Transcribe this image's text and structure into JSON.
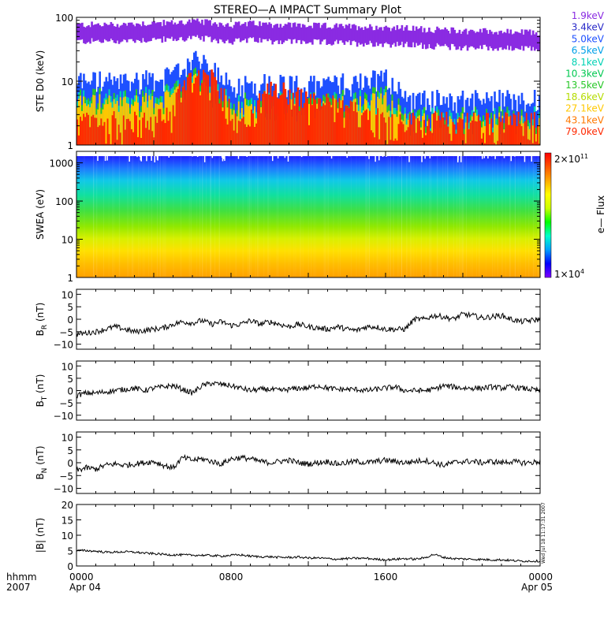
{
  "title": "STEREO—A IMPACT Summary Plot",
  "stamp": "Wed Jul 18 11:17:31 2007",
  "colors": {
    "ste_channels": [
      "#8a2be2",
      "#2828c8",
      "#1e50ff",
      "#00a0e8",
      "#00d2b4",
      "#00c850",
      "#28c828",
      "#b4dc00",
      "#ffc800",
      "#ff7800",
      "#ff2800"
    ]
  },
  "chart_data": [
    {
      "type": "line",
      "panel": "ste",
      "ylabel": "STE D0 (keV)",
      "yscale": "log",
      "ylim": [
        1,
        100
      ],
      "yticks": [
        1,
        10,
        100
      ],
      "ytick_labels": [
        "1",
        "10",
        "100"
      ],
      "legend": [
        "1.9keV",
        "3.4keV",
        "5.0keV",
        "6.5keV",
        "8.1keV",
        "10.3keV",
        "13.5keV",
        "18.6keV",
        "27.1keV",
        "43.1keV",
        "79.0keV"
      ],
      "legend_position": "right",
      "x_hours": [
        0,
        1,
        2,
        3,
        4,
        5,
        6,
        7,
        8,
        9,
        10,
        11,
        12,
        13,
        14,
        15,
        16,
        17,
        18,
        19,
        20,
        21,
        22,
        23,
        24
      ],
      "series_levels": {
        "upper_envelope": [
          75,
          75,
          75,
          78,
          80,
          80,
          85,
          80,
          75,
          78,
          76,
          75,
          72,
          72,
          70,
          70,
          68,
          66,
          64,
          62,
          60,
          60,
          58,
          57,
          56
        ],
        "blue_envelope": [
          10,
          10,
          9,
          10,
          11,
          11,
          22,
          14,
          8,
          9,
          9,
          9,
          8,
          9,
          9,
          10,
          11,
          5,
          5,
          5,
          5,
          5,
          5,
          5,
          5
        ],
        "red_envelope": [
          2,
          2,
          2,
          2,
          2,
          3,
          12,
          9,
          3,
          2,
          6,
          6,
          4,
          4,
          3,
          3,
          2,
          2,
          2,
          2,
          2,
          2,
          2,
          2,
          2
        ]
      }
    },
    {
      "type": "heatmap",
      "panel": "swea",
      "ylabel": "SWEA (eV)",
      "yscale": "log",
      "ylim": [
        1,
        2000
      ],
      "yticks": [
        1,
        10,
        100,
        1000
      ],
      "ytick_labels": [
        "1",
        "10",
        "100",
        "1000"
      ],
      "colorbar_label": "e— Flux",
      "colorbar_min": "1×10",
      "colorbar_min_exp": "4",
      "colorbar_max": "2×10",
      "colorbar_max_exp": "11",
      "colorscale": [
        "#7f00ff",
        "#0000ff",
        "#00a0ff",
        "#00ffcc",
        "#00ff00",
        "#ccff00",
        "#ffff00",
        "#ffaa00",
        "#ff5500",
        "#ff0000"
      ]
    },
    {
      "type": "line",
      "panel": "br",
      "ylabel_main": "B",
      "ylabel_sub": "R",
      "ylabel_unit": " (nT)",
      "ylim": [
        -12,
        12
      ],
      "yticks": [
        -10,
        -5,
        0,
        5,
        10
      ],
      "ytick_labels": [
        "−10",
        "−5",
        "0",
        "5",
        "10"
      ],
      "x_hours": [
        0,
        0.5,
        1,
        1.5,
        2,
        2.5,
        3,
        3.5,
        4,
        4.5,
        5,
        5.5,
        6,
        6.5,
        7,
        7.5,
        8,
        8.5,
        9,
        9.5,
        10,
        10.5,
        11,
        11.5,
        12,
        12.5,
        13,
        13.5,
        14,
        14.5,
        15,
        15.5,
        16,
        16.5,
        17,
        17.5,
        18,
        18.5,
        19,
        19.5,
        20,
        20.5,
        21,
        21.5,
        22,
        22.5,
        23,
        23.5,
        24
      ],
      "values": [
        -6,
        -5.5,
        -5,
        -4,
        -3,
        -4,
        -5,
        -4.5,
        -4,
        -3.5,
        -2,
        -1,
        -1.5,
        -0.5,
        -2,
        -1,
        -2.5,
        -2,
        -0.5,
        -2,
        -1,
        -2,
        -3,
        -2,
        -3,
        -3.5,
        -4,
        -3,
        -4,
        -4.5,
        -3,
        -3,
        -4,
        -4,
        -4,
        0,
        0,
        1.5,
        1,
        0,
        2,
        1.5,
        0.5,
        1,
        1.5,
        0,
        -1,
        -0.5,
        0
      ]
    },
    {
      "type": "line",
      "panel": "bt",
      "ylabel_main": "B",
      "ylabel_sub": "T",
      "ylabel_unit": " (nT)",
      "ylim": [
        -12,
        12
      ],
      "yticks": [
        -10,
        -5,
        0,
        5,
        10
      ],
      "ytick_labels": [
        "−10",
        "−5",
        "0",
        "5",
        "10"
      ],
      "x_hours": [
        0,
        0.5,
        1,
        1.5,
        2,
        2.5,
        3,
        3.5,
        4,
        4.5,
        5,
        5.5,
        6,
        6.5,
        7,
        7.5,
        8,
        8.5,
        9,
        9.5,
        10,
        10.5,
        11,
        11.5,
        12,
        12.5,
        13,
        13.5,
        14,
        14.5,
        15,
        15.5,
        16,
        16.5,
        17,
        17.5,
        18,
        18.5,
        19,
        19.5,
        20,
        20.5,
        21,
        21.5,
        22,
        22.5,
        23,
        23.5,
        24
      ],
      "values": [
        -2,
        -1,
        -1,
        -0.5,
        0,
        0.5,
        1,
        0,
        1,
        1.5,
        2,
        0.5,
        -1,
        2,
        3,
        2.5,
        2,
        1,
        0,
        0.5,
        0.5,
        0,
        0.5,
        1,
        1,
        2,
        1,
        0.5,
        0.5,
        0.5,
        0,
        0.5,
        1,
        1.5,
        0,
        0,
        0,
        0.5,
        2,
        1.5,
        1,
        1,
        1,
        1.5,
        1,
        1.5,
        1,
        0.5,
        0
      ]
    },
    {
      "type": "line",
      "panel": "bn",
      "ylabel_main": "B",
      "ylabel_sub": "N",
      "ylabel_unit": " (nT)",
      "ylim": [
        -12,
        12
      ],
      "yticks": [
        -10,
        -5,
        0,
        5,
        10
      ],
      "ytick_labels": [
        "−10",
        "−5",
        "0",
        "5",
        "10"
      ],
      "x_hours": [
        0,
        0.5,
        1,
        1.5,
        2,
        2.5,
        3,
        3.5,
        4,
        4.5,
        5,
        5.5,
        6,
        6.5,
        7,
        7.5,
        8,
        8.5,
        9,
        9.5,
        10,
        10.5,
        11,
        11.5,
        12,
        12.5,
        13,
        13.5,
        14,
        14.5,
        15,
        15.5,
        16,
        16.5,
        17,
        17.5,
        18,
        18.5,
        19,
        19.5,
        20,
        20.5,
        21,
        21.5,
        22,
        22.5,
        23,
        23.5,
        24
      ],
      "values": [
        -3,
        -2,
        -2.5,
        -1,
        -0.5,
        -1,
        -0.5,
        0,
        0.5,
        -1,
        -2,
        2,
        1,
        1.5,
        0.5,
        -0.5,
        1.5,
        2,
        1.5,
        0.5,
        0,
        0.5,
        1,
        0,
        -0.5,
        0,
        0.5,
        -0.5,
        0,
        0.5,
        0,
        0.5,
        1,
        0.5,
        0,
        0.5,
        1,
        0,
        -1,
        0,
        0.5,
        0.5,
        0,
        0.5,
        0,
        0.5,
        0,
        0,
        0.5
      ]
    },
    {
      "type": "line",
      "panel": "bmag",
      "ylabel": "|B| (nT)",
      "ylim": [
        0,
        20
      ],
      "yticks": [
        0,
        5,
        10,
        15,
        20
      ],
      "ytick_labels": [
        "0",
        "5",
        "10",
        "15",
        "20"
      ],
      "x_hours": [
        0,
        0.5,
        1,
        1.5,
        2,
        2.5,
        3,
        3.5,
        4,
        4.5,
        5,
        5.5,
        6,
        6.5,
        7,
        7.5,
        8,
        8.5,
        9,
        9.5,
        10,
        10.5,
        11,
        11.5,
        12,
        12.5,
        13,
        13.5,
        14,
        14.5,
        15,
        15.5,
        16,
        16.5,
        17,
        17.5,
        18,
        18.5,
        19,
        19.5,
        20,
        20.5,
        21,
        21.5,
        22,
        22.5,
        23,
        23.5,
        24
      ],
      "values": [
        5,
        5,
        4.8,
        4.5,
        4.5,
        4.6,
        4.5,
        4.2,
        4,
        3.8,
        3.6,
        3.6,
        3.5,
        3.5,
        3.4,
        3.2,
        3.5,
        3.6,
        3.2,
        3,
        3,
        2.8,
        2.8,
        2.9,
        2.6,
        2.6,
        2.4,
        2.2,
        2.4,
        2.5,
        2.5,
        2.2,
        2,
        2.2,
        2.4,
        2.2,
        2.6,
        3.8,
        2.8,
        2.4,
        2.3,
        2.2,
        2.1,
        2,
        2,
        1.8,
        1.6,
        1.6,
        1.6
      ]
    }
  ],
  "xaxis": {
    "label_line1": "hhmm",
    "label_line2": "2007",
    "ticks": [
      {
        "hour": 0,
        "label": "0000",
        "date": "Apr 04"
      },
      {
        "hour": 8,
        "label": "0800",
        "date": ""
      },
      {
        "hour": 16,
        "label": "1600",
        "date": ""
      },
      {
        "hour": 24,
        "label": "0000",
        "date": "Apr 05"
      }
    ]
  }
}
